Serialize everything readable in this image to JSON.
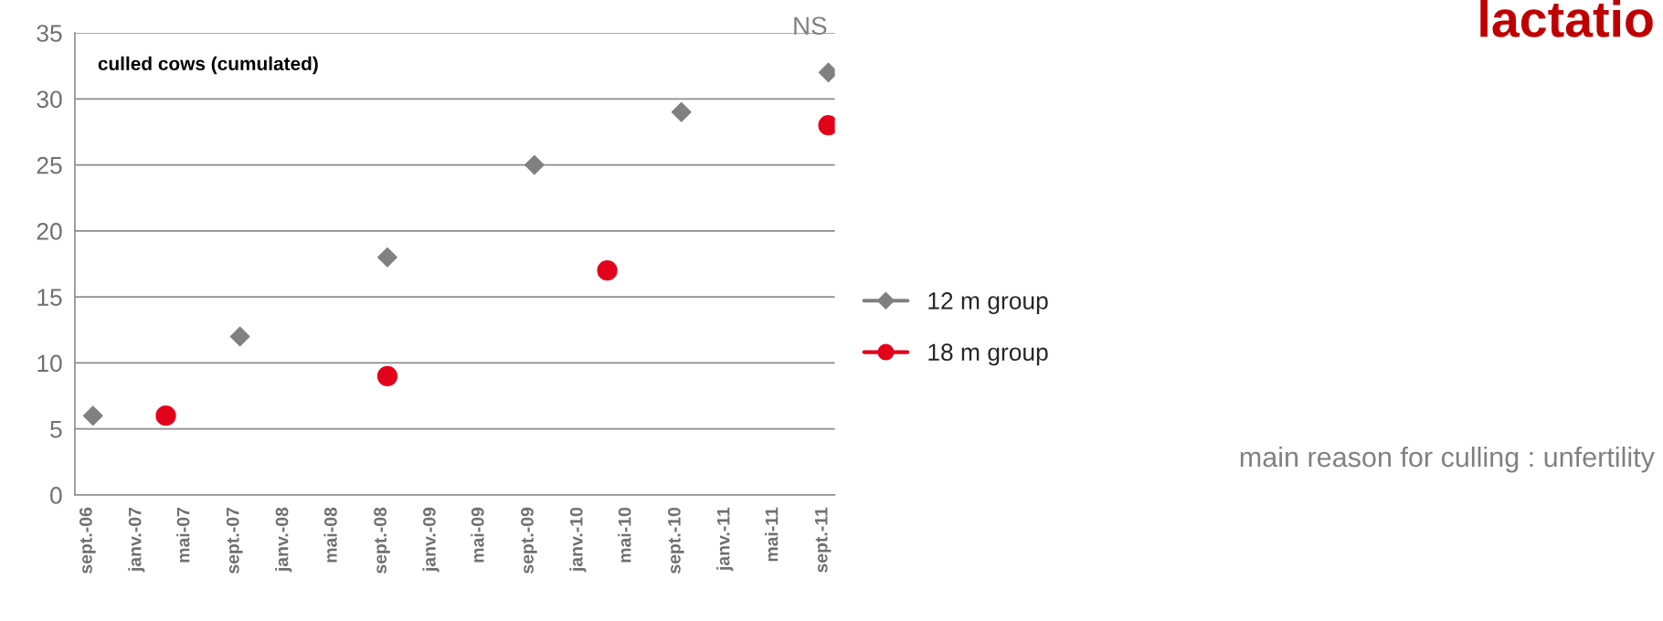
{
  "chart_data": {
    "type": "scatter",
    "title": "lactatio",
    "annotations": [
      "culled cows (cumulated)",
      "NS",
      "main reason for culling : unfertility"
    ],
    "series": [
      {
        "name": "12 m group",
        "color": "#808080",
        "marker": "diamond",
        "x": [
          "2006-09-15",
          "2007-09-15",
          "2008-09-15",
          "2009-09-15",
          "2010-09-15",
          "2011-09-15"
        ],
        "values": [
          6,
          12,
          18,
          25,
          29,
          32
        ]
      },
      {
        "name": "18 m group",
        "color": "#e3001b",
        "marker": "circle",
        "x": [
          "2007-03-15",
          "2008-09-15",
          "2010-03-15",
          "2011-09-15"
        ],
        "values": [
          6,
          9,
          17,
          28
        ]
      }
    ],
    "xlim": [
      "2006-08-01",
      "2011-10-01"
    ],
    "xticks": [
      {
        "value": "2006-09-01",
        "label": "sept.-06"
      },
      {
        "value": "2007-01-01",
        "label": "janv.-07"
      },
      {
        "value": "2007-05-01",
        "label": "mai-07"
      },
      {
        "value": "2007-09-01",
        "label": "sept.-07"
      },
      {
        "value": "2008-01-01",
        "label": "janv.-08"
      },
      {
        "value": "2008-05-01",
        "label": "mai-08"
      },
      {
        "value": "2008-09-01",
        "label": "sept.-08"
      },
      {
        "value": "2009-01-01",
        "label": "janv.-09"
      },
      {
        "value": "2009-05-01",
        "label": "mai-09"
      },
      {
        "value": "2009-09-01",
        "label": "sept.-09"
      },
      {
        "value": "2010-01-01",
        "label": "janv.-10"
      },
      {
        "value": "2010-05-01",
        "label": "mai-10"
      },
      {
        "value": "2010-09-01",
        "label": "sept.-10"
      },
      {
        "value": "2011-01-01",
        "label": "janv.-11"
      },
      {
        "value": "2011-05-01",
        "label": "mai-11"
      },
      {
        "value": "2011-09-01",
        "label": "sept.-11"
      }
    ],
    "ylim": [
      0,
      35
    ],
    "yticks": [
      0,
      5,
      10,
      15,
      20,
      25,
      30,
      35
    ],
    "grid": "y",
    "legend": "right"
  }
}
